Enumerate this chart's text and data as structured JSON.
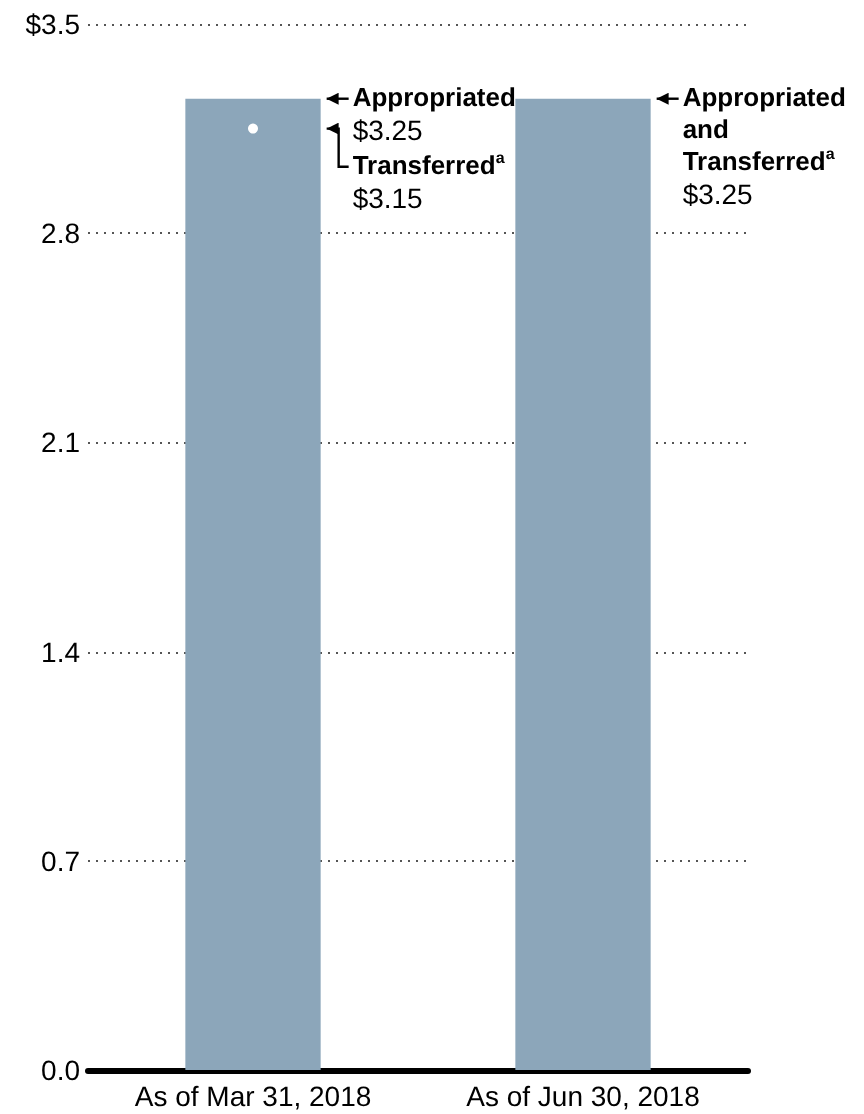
{
  "chart_data": {
    "type": "bar",
    "categories": [
      "As of Mar 31, 2018",
      "As of Jun 30, 2018"
    ],
    "series": [
      {
        "type": "bar",
        "color": "#8ca6ba",
        "values": [
          3.25,
          3.25
        ],
        "value_labels": [
          "Appropriated\n$3.25",
          "Appropriated\nand\nTransferred$^{a}$\n$3.25"
        ]
      },
      {
        "type": "scatter",
        "color": "#ffffff",
        "x": [
          "As of Mar 31, 2018"
        ],
        "values": [
          3.15
        ],
        "value_labels": [
          "Transferred$^{a}$\n$3.15"
        ]
      }
    ],
    "ylim": [
      0,
      3.5
    ],
    "yticks": [
      {
        "value": 0,
        "label": "0.0"
      },
      0.7,
      1.4,
      2.1,
      2.8,
      {
        "value": 3.5,
        "label": "$3.5"
      }
    ],
    "grid": "y"
  }
}
